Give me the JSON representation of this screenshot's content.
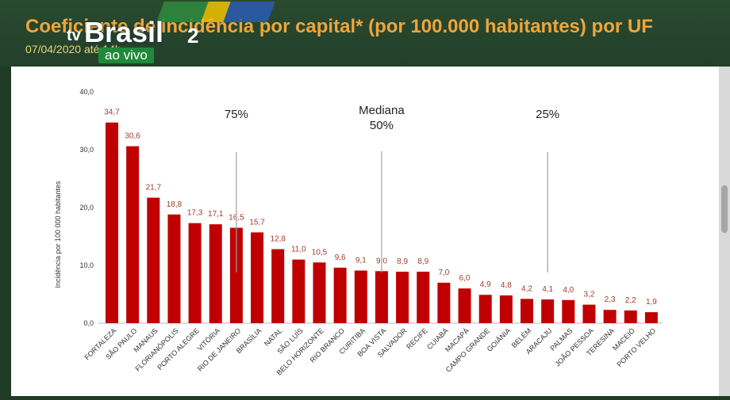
{
  "header": {
    "title": "Coeficiente de incidência por capital* (por 100.000 habitantes) por UF",
    "subtitle": "07/04/2020 até 14h"
  },
  "logo": {
    "tv": "tv",
    "brand": "Brasil",
    "number": "2",
    "live": "ao vivo"
  },
  "colors": {
    "bar": "#c00000",
    "header_bg": "#22402a",
    "title": "#f0a53a"
  },
  "chart_data": {
    "type": "bar",
    "title": "",
    "xlabel": "",
    "ylabel": "Incidência por 100 000 habitantes",
    "ylim": [
      0,
      40
    ],
    "yticks": [
      "0,0",
      "10,0",
      "20,0",
      "30,0",
      "40,0"
    ],
    "categories": [
      "FORTALEZA",
      "SÃO PAULO",
      "MANAUS",
      "FLORIANÓPOLIS",
      "PORTO ALEGRE",
      "VITÓRIA",
      "RIO DE JANEIRO",
      "BRASÍLIA",
      "NATAL",
      "SÃO LUÍS",
      "BELO HORIZONTE",
      "RIO BRANCO",
      "CURITIBA",
      "BOA VISTA",
      "SALVADOR",
      "RECIFE",
      "CUIABÁ",
      "MACAPÁ",
      "CAMPO GRANDE",
      "GOIÂNIA",
      "BELÉM",
      "ARACAJU",
      "PALMAS",
      "JOÃO PESSOA",
      "TERESINA",
      "MACEIÓ",
      "PORTO VELHO"
    ],
    "values": [
      34.7,
      30.6,
      21.7,
      18.8,
      17.3,
      17.1,
      16.5,
      15.7,
      12.8,
      11.0,
      10.5,
      9.6,
      9.1,
      9.0,
      8.9,
      8.9,
      7.0,
      6.0,
      4.9,
      4.8,
      4.2,
      4.1,
      4.0,
      3.2,
      2.3,
      2.2,
      1.9
    ],
    "value_labels": [
      "34,7",
      "30,6",
      "21,7",
      "18,8",
      "17,3",
      "17,1",
      "16,5",
      "15,7",
      "12,8",
      "11,0",
      "10,5",
      "9,6",
      "9,1",
      "9,0",
      "8,9",
      "8,9",
      "7,0",
      "6,0",
      "4,9",
      "4,8",
      "4,2",
      "4,1",
      "4,0",
      "3,2",
      "2,3",
      "2,2",
      "1,9"
    ],
    "grid": false,
    "annotations": [
      {
        "lines": [
          "75%"
        ],
        "category_index": 6
      },
      {
        "lines": [
          "Mediana",
          "50%"
        ],
        "category_index": 13
      },
      {
        "lines": [
          "25%"
        ],
        "category_index": 21
      }
    ]
  }
}
